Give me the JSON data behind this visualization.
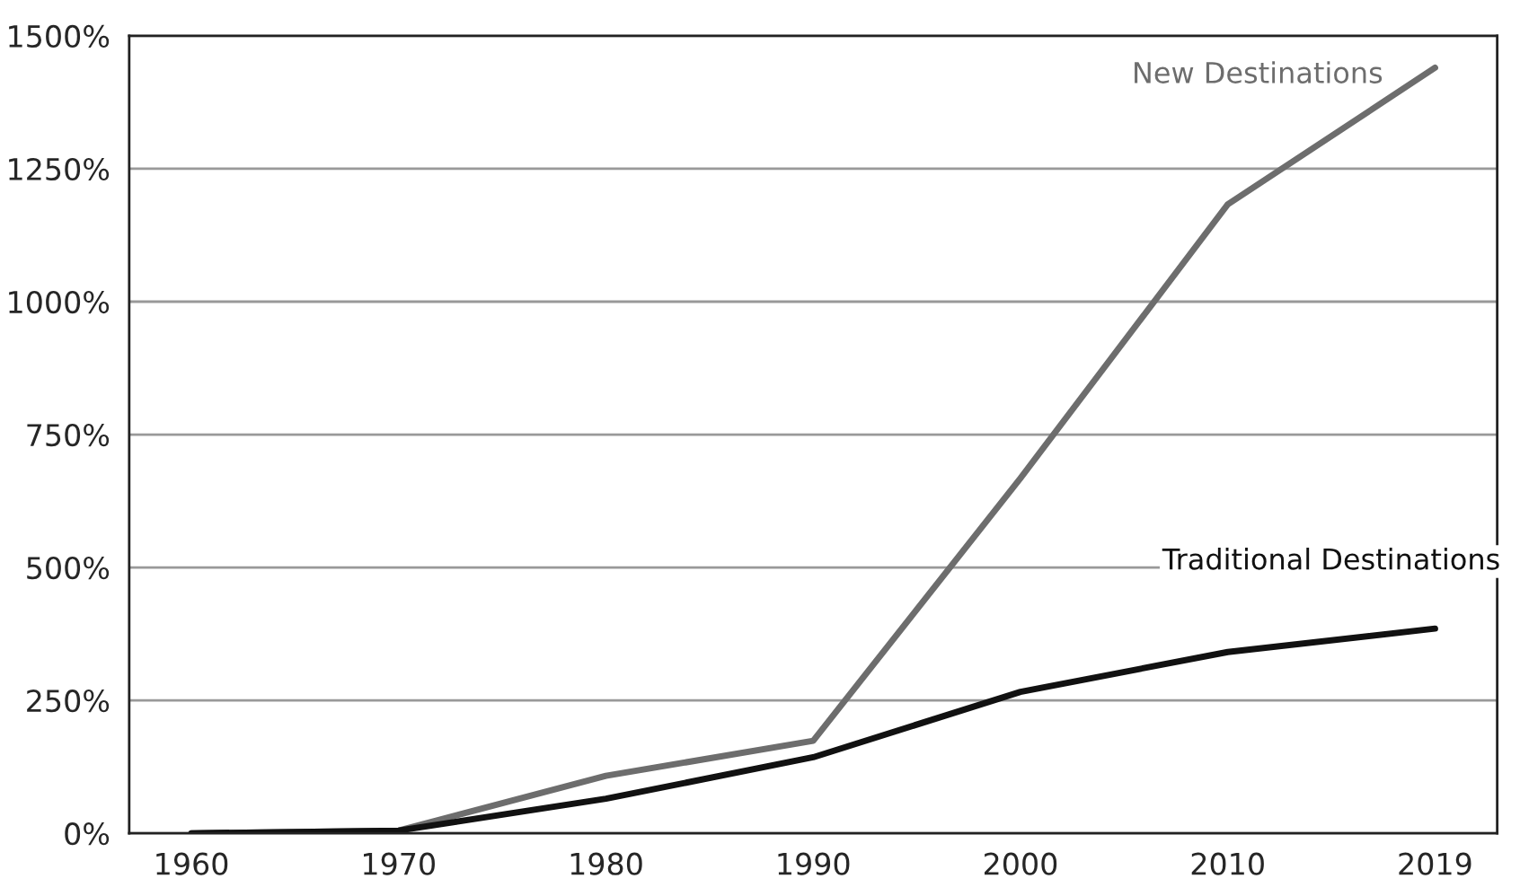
{
  "chart_data": {
    "type": "line",
    "categories": [
      "1960",
      "1970",
      "1980",
      "1990",
      "2000",
      "2010",
      "2019"
    ],
    "series": [
      {
        "name": "New Destinations",
        "color": "#6d6d6d",
        "values": [
          0,
          5,
          108,
          174,
          668,
          1183,
          1440
        ]
      },
      {
        "name": "Traditional Destinations",
        "color": "#111111",
        "values": [
          0,
          5,
          65,
          143,
          266,
          341,
          385
        ]
      }
    ],
    "ylim": [
      0,
      1500
    ],
    "yticks": [
      {
        "value": 0,
        "label": "0%"
      },
      {
        "value": 250,
        "label": "250%"
      },
      {
        "value": 500,
        "label": "500%"
      },
      {
        "value": 750,
        "label": "750%"
      },
      {
        "value": 1000,
        "label": "1000%"
      },
      {
        "value": 1250,
        "label": "1250%"
      },
      {
        "value": 1500,
        "label": "1500%"
      }
    ],
    "grid": "y",
    "legend": false,
    "marker": "none",
    "line_style": "solid"
  }
}
